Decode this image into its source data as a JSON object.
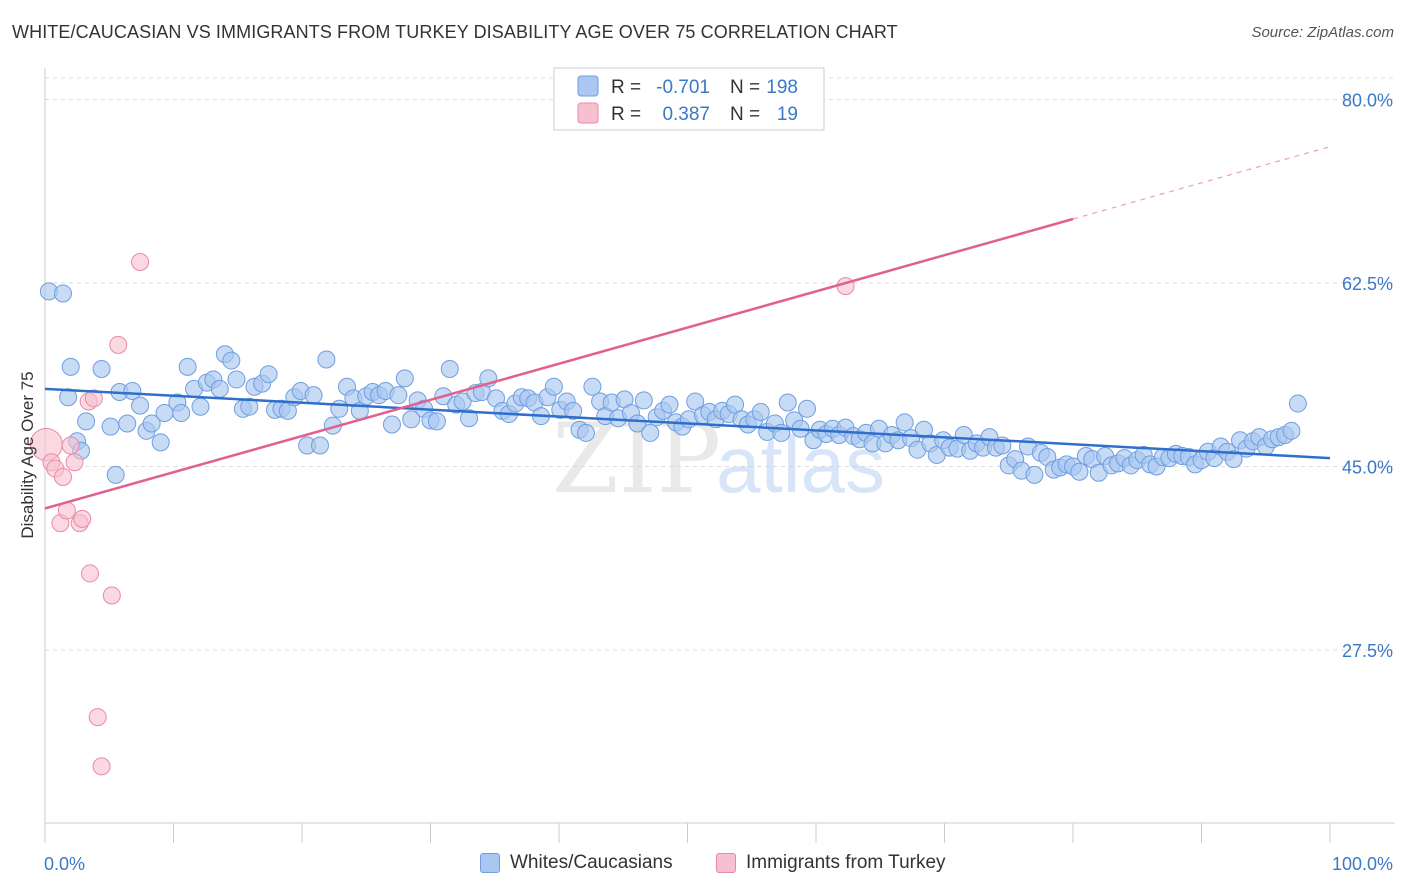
{
  "title": "WHITE/CAUCASIAN VS IMMIGRANTS FROM TURKEY DISABILITY AGE OVER 75 CORRELATION CHART",
  "source": "Source: ZipAtlas.com",
  "watermark": {
    "part1": "ZIP",
    "part2": "atlas"
  },
  "colors": {
    "blue_fill": "#a9c7f0",
    "blue_stroke": "#6f9ee0",
    "blue_line": "#2f6fcc",
    "pink_fill": "#f7c0d0",
    "pink_stroke": "#e98aa6",
    "pink_line": "#e06090",
    "axis_label": "#3a78c8",
    "grid": "#dddddd"
  },
  "legend_box": {
    "rows": [
      {
        "r_label": "R =",
        "r_value": "-0.701",
        "n_label": "N =",
        "n_value": "198"
      },
      {
        "r_label": "R =",
        "r_value": "0.387",
        "n_label": "N =",
        "n_value": "19"
      }
    ]
  },
  "legend_bottom": {
    "items": [
      {
        "label": "Whites/Caucasians"
      },
      {
        "label": "Immigrants from Turkey"
      }
    ]
  },
  "chart_data": {
    "type": "scatter",
    "title": "WHITE/CAUCASIAN VS IMMIGRANTS FROM TURKEY DISABILITY AGE OVER 75 CORRELATION CHART",
    "xlabel": "",
    "ylabel": "Disability Age Over 75",
    "xlim": [
      0,
      100
    ],
    "ylim": [
      11,
      83
    ],
    "x_tick_labels": [
      "0.0%",
      "100.0%"
    ],
    "y_ticks": [
      27.5,
      45.0,
      62.5,
      80.0
    ],
    "y_tick_labels": [
      "27.5%",
      "45.0%",
      "62.5%",
      "80.0%"
    ],
    "grid": true,
    "series": [
      {
        "name": "Whites/Caucasians",
        "R": -0.701,
        "N": 198,
        "trend": {
          "x0": 0,
          "y0": 52.4,
          "x1": 100,
          "y1": 45.8
        },
        "points": [
          [
            0.3,
            61.7
          ],
          [
            1.4,
            61.5
          ],
          [
            2,
            54.5
          ],
          [
            1.8,
            51.6
          ],
          [
            2.5,
            47.4
          ],
          [
            2.8,
            46.5
          ],
          [
            3.2,
            49.3
          ],
          [
            4.4,
            54.3
          ],
          [
            5.1,
            48.8
          ],
          [
            5.5,
            44.2
          ],
          [
            5.8,
            52.1
          ],
          [
            6.4,
            49.1
          ],
          [
            6.8,
            52.2
          ],
          [
            7.4,
            50.8
          ],
          [
            7.9,
            48.4
          ],
          [
            8.3,
            49.1
          ],
          [
            9,
            47.3
          ],
          [
            9.3,
            50.1
          ],
          [
            10.3,
            51.1
          ],
          [
            10.6,
            50.1
          ],
          [
            11.1,
            54.5
          ],
          [
            11.6,
            52.4
          ],
          [
            12.1,
            50.7
          ],
          [
            12.6,
            53.0
          ],
          [
            13.1,
            53.3
          ],
          [
            13.6,
            52.4
          ],
          [
            14,
            55.7
          ],
          [
            14.5,
            55.1
          ],
          [
            14.9,
            53.3
          ],
          [
            15.4,
            50.5
          ],
          [
            15.9,
            50.7
          ],
          [
            16.3,
            52.6
          ],
          [
            16.9,
            52.9
          ],
          [
            17.4,
            53.8
          ],
          [
            17.9,
            50.4
          ],
          [
            18.4,
            50.5
          ],
          [
            18.9,
            50.3
          ],
          [
            19.4,
            51.6
          ],
          [
            19.9,
            52.2
          ],
          [
            20.4,
            47.0
          ],
          [
            20.9,
            51.8
          ],
          [
            21.4,
            47.0
          ],
          [
            21.9,
            55.2
          ],
          [
            22.4,
            48.9
          ],
          [
            22.9,
            50.5
          ],
          [
            23.5,
            52.6
          ],
          [
            24,
            51.5
          ],
          [
            24.5,
            50.3
          ],
          [
            25,
            51.7
          ],
          [
            25.5,
            52.1
          ],
          [
            26,
            51.8
          ],
          [
            26.5,
            52.2
          ],
          [
            27,
            49.0
          ],
          [
            27.5,
            51.8
          ],
          [
            28,
            53.4
          ],
          [
            28.5,
            49.5
          ],
          [
            29,
            51.3
          ],
          [
            29.5,
            50.5
          ],
          [
            30,
            49.4
          ],
          [
            30.5,
            49.3
          ],
          [
            31,
            51.7
          ],
          [
            31.5,
            54.3
          ],
          [
            32,
            50.9
          ],
          [
            32.5,
            51.2
          ],
          [
            33,
            49.6
          ],
          [
            33.5,
            52.0
          ],
          [
            34,
            52.1
          ],
          [
            34.5,
            53.4
          ],
          [
            35.1,
            51.5
          ],
          [
            35.6,
            50.3
          ],
          [
            36.1,
            50.0
          ],
          [
            36.6,
            51.0
          ],
          [
            37.1,
            51.6
          ],
          [
            37.6,
            51.5
          ],
          [
            38.1,
            51.1
          ],
          [
            38.6,
            49.8
          ],
          [
            39.1,
            51.6
          ],
          [
            39.6,
            52.6
          ],
          [
            40.1,
            50.4
          ],
          [
            40.6,
            51.2
          ],
          [
            41.1,
            50.3
          ],
          [
            41.6,
            48.5
          ],
          [
            42.1,
            48.2
          ],
          [
            42.6,
            52.6
          ],
          [
            43.2,
            51.2
          ],
          [
            43.6,
            49.8
          ],
          [
            44.1,
            51.1
          ],
          [
            44.6,
            49.6
          ],
          [
            45.1,
            51.4
          ],
          [
            45.6,
            50.1
          ],
          [
            46.1,
            49.1
          ],
          [
            46.6,
            51.3
          ],
          [
            47.1,
            48.2
          ],
          [
            47.6,
            49.7
          ],
          [
            48.1,
            50.3
          ],
          [
            48.6,
            50.9
          ],
          [
            49.1,
            49.2
          ],
          [
            49.6,
            48.8
          ],
          [
            50.1,
            49.5
          ],
          [
            50.6,
            51.2
          ],
          [
            51.2,
            49.9
          ],
          [
            51.7,
            50.2
          ],
          [
            52.2,
            49.5
          ],
          [
            52.7,
            50.3
          ],
          [
            53.2,
            50.0
          ],
          [
            53.7,
            50.9
          ],
          [
            54.2,
            49.5
          ],
          [
            54.7,
            49.0
          ],
          [
            55.2,
            49.5
          ],
          [
            55.7,
            50.2
          ],
          [
            56.2,
            48.3
          ],
          [
            56.8,
            49.1
          ],
          [
            57.3,
            48.2
          ],
          [
            57.8,
            51.1
          ],
          [
            58.3,
            49.4
          ],
          [
            58.8,
            48.6
          ],
          [
            59.3,
            50.5
          ],
          [
            59.8,
            47.5
          ],
          [
            60.3,
            48.5
          ],
          [
            60.8,
            48.1
          ],
          [
            61.3,
            48.6
          ],
          [
            61.8,
            48.0
          ],
          [
            62.3,
            48.7
          ],
          [
            62.9,
            47.9
          ],
          [
            63.4,
            47.6
          ],
          [
            63.9,
            48.2
          ],
          [
            64.4,
            47.2
          ],
          [
            64.9,
            48.6
          ],
          [
            65.4,
            47.2
          ],
          [
            65.9,
            48.0
          ],
          [
            66.4,
            47.5
          ],
          [
            66.9,
            49.2
          ],
          [
            67.4,
            47.7
          ],
          [
            67.9,
            46.6
          ],
          [
            68.4,
            48.5
          ],
          [
            68.9,
            47.2
          ],
          [
            69.4,
            46.1
          ],
          [
            69.9,
            47.5
          ],
          [
            70.4,
            46.8
          ],
          [
            71,
            46.7
          ],
          [
            71.5,
            48.0
          ],
          [
            72,
            46.5
          ],
          [
            72.5,
            47.2
          ],
          [
            73,
            46.8
          ],
          [
            73.5,
            47.8
          ],
          [
            74,
            46.8
          ],
          [
            74.5,
            47.0
          ],
          [
            75,
            45.1
          ],
          [
            75.5,
            45.7
          ],
          [
            76,
            44.6
          ],
          [
            76.5,
            46.9
          ],
          [
            77,
            44.2
          ],
          [
            77.5,
            46.3
          ],
          [
            78,
            45.9
          ],
          [
            78.5,
            44.7
          ],
          [
            79,
            44.9
          ],
          [
            79.5,
            45.2
          ],
          [
            80,
            45.0
          ],
          [
            80.5,
            44.5
          ],
          [
            81,
            46.0
          ],
          [
            81.5,
            45.7
          ],
          [
            82,
            44.4
          ],
          [
            82.5,
            46.0
          ],
          [
            83,
            45.1
          ],
          [
            83.5,
            45.3
          ],
          [
            84,
            45.8
          ],
          [
            84.5,
            45.1
          ],
          [
            85,
            45.6
          ],
          [
            85.5,
            46.1
          ],
          [
            86,
            45.2
          ],
          [
            86.5,
            45.0
          ],
          [
            87,
            45.9
          ],
          [
            87.5,
            45.8
          ],
          [
            88,
            46.2
          ],
          [
            88.5,
            46.0
          ],
          [
            89,
            45.9
          ],
          [
            89.5,
            45.2
          ],
          [
            90,
            45.6
          ],
          [
            90.5,
            46.4
          ],
          [
            91,
            45.8
          ],
          [
            91.5,
            46.9
          ],
          [
            92,
            46.4
          ],
          [
            92.5,
            45.7
          ],
          [
            93,
            47.5
          ],
          [
            93.5,
            46.7
          ],
          [
            94,
            47.4
          ],
          [
            94.5,
            47.8
          ],
          [
            95,
            46.9
          ],
          [
            95.5,
            47.6
          ],
          [
            96,
            47.8
          ],
          [
            96.5,
            48.0
          ],
          [
            97,
            48.4
          ],
          [
            97.5,
            51.0
          ]
        ]
      },
      {
        "name": "Immigrants from Turkey",
        "R": 0.387,
        "N": 19,
        "trend": {
          "x0": 0,
          "y0": 41.0,
          "x1": 80,
          "y1": 68.6,
          "dash_to_x": 100,
          "dash_to_y": 75.5
        },
        "points": [
          [
            0.1,
            47.1
          ],
          [
            0.5,
            45.4
          ],
          [
            0.8,
            44.8
          ],
          [
            1.2,
            39.6
          ],
          [
            1.4,
            44.0
          ],
          [
            1.7,
            40.8
          ],
          [
            2,
            47.0
          ],
          [
            2.3,
            45.4
          ],
          [
            2.7,
            39.6
          ],
          [
            2.9,
            40.0
          ],
          [
            3.4,
            51.2
          ],
          [
            3.5,
            34.8
          ],
          [
            3.8,
            51.5
          ],
          [
            4.1,
            21.1
          ],
          [
            4.4,
            16.4
          ],
          [
            5.2,
            32.7
          ],
          [
            5.7,
            56.6
          ],
          [
            7.4,
            64.5
          ],
          [
            62.3,
            62.2
          ]
        ]
      }
    ]
  }
}
